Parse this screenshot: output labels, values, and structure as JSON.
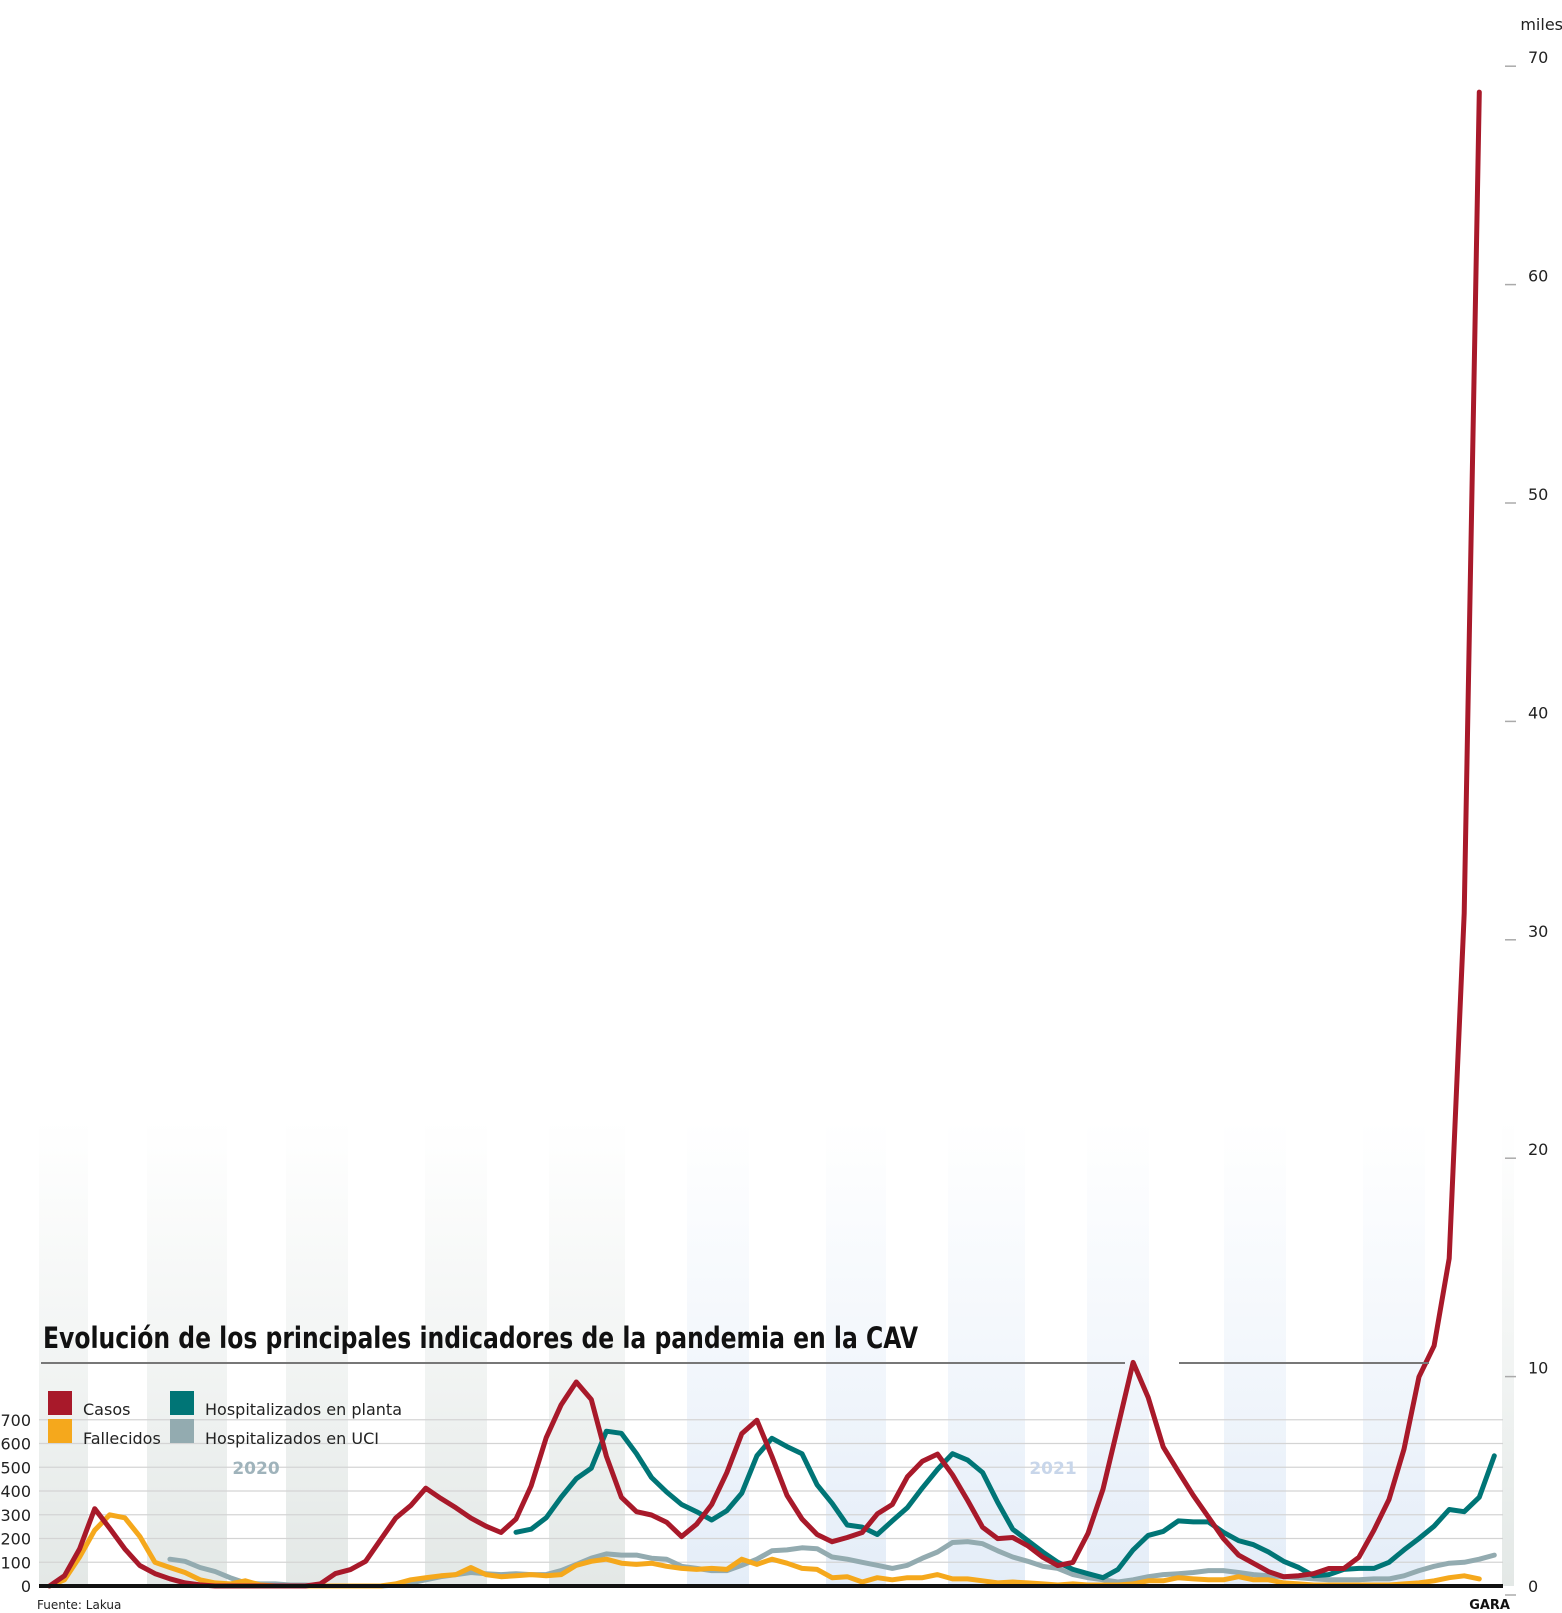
{
  "chart_data": {
    "type": "line",
    "title": "Evolución de los principales indicadores de la pandemia en la CAV",
    "source": "Fuente: Lakua",
    "brand": "GARA",
    "x_unit": "week index (March 2020 – January 2022)",
    "year_labels": [
      "2020",
      "2021"
    ],
    "left_axis": {
      "ticks": [
        "0",
        "100",
        "200",
        "300",
        "400",
        "500",
        "600",
        "700"
      ],
      "range": [
        0,
        700
      ],
      "applies_to": [
        "Hospitalizados en planta",
        "Hospitalizados en UCI",
        "Fallecidos"
      ]
    },
    "right_axis": {
      "unit_label": "miles",
      "ticks": [
        "0",
        "10",
        "20",
        "30",
        "40",
        "50",
        "60",
        "70"
      ],
      "range": [
        0,
        70
      ],
      "applies_to": [
        "Casos"
      ]
    },
    "grid": true,
    "legend": [
      {
        "name": "Casos",
        "color": "#a8192a"
      },
      {
        "name": "Fallecidos",
        "color": "#f5a81c"
      },
      {
        "name": "Hospitalizados en planta",
        "color": "#007576"
      },
      {
        "name": "Hospitalizados en UCI",
        "color": "#93abb0"
      }
    ],
    "legend_position": "top-left",
    "series": [
      {
        "name": "Casos",
        "axis": "right",
        "start": 0,
        "color": "#a8192a",
        "values": [
          0,
          0.47,
          1.7,
          3.54,
          2.64,
          1.7,
          0.94,
          0.57,
          0.33,
          0.14,
          0.05,
          0,
          0,
          0,
          0,
          0,
          0,
          0,
          0.1,
          0.57,
          0.75,
          1.13,
          2.12,
          3.11,
          3.68,
          4.48,
          4.01,
          3.58,
          3.11,
          2.74,
          2.45,
          3.07,
          4.58,
          6.79,
          8.3,
          9.34,
          8.54,
          5.94,
          4.06,
          3.4,
          3.25,
          2.92,
          2.26,
          2.83,
          3.73,
          5.19,
          6.98,
          7.59,
          5.94,
          4.15,
          3.07,
          2.36,
          2.03,
          2.22,
          2.45,
          3.3,
          3.73,
          5.0,
          5.71,
          6.04,
          5.09,
          3.92,
          2.69,
          2.17,
          2.22,
          1.84,
          1.32,
          0.94,
          1.08,
          2.41,
          4.43,
          7.31,
          10.24,
          8.63,
          6.37,
          5.24,
          4.15,
          3.16,
          2.17,
          1.42,
          1.04,
          0.66,
          0.42,
          0.47,
          0.57,
          0.8,
          0.8,
          1.32,
          2.55,
          3.96,
          6.27,
          9.58,
          11.0,
          15.0,
          30.8,
          68.4
        ]
      },
      {
        "name": "Fallecidos",
        "axis": "left",
        "start": 0,
        "color": "#f5a81c",
        "values": [
          0,
          26,
          122,
          235,
          300,
          287,
          209,
          100,
          78,
          57,
          26,
          13,
          9,
          22,
          4,
          0,
          0,
          0,
          0,
          0,
          0,
          0,
          0,
          9,
          26,
          35,
          43,
          48,
          78,
          48,
          39,
          43,
          48,
          43,
          48,
          87,
          104,
          113,
          96,
          91,
          96,
          83,
          74,
          70,
          74,
          70,
          113,
          91,
          113,
          96,
          74,
          70,
          35,
          39,
          17,
          35,
          26,
          35,
          35,
          48,
          30,
          30,
          22,
          13,
          17,
          13,
          9,
          4,
          9,
          4,
          4,
          4,
          9,
          22,
          22,
          35,
          30,
          26,
          26,
          39,
          26,
          26,
          13,
          9,
          4,
          4,
          4,
          4,
          4,
          4,
          9,
          13,
          22,
          35,
          43,
          30
        ]
      },
      {
        "name": "Hospitalizados en planta",
        "axis": "left",
        "start": 31,
        "color": "#007576",
        "values": [
          226,
          239,
          287,
          374,
          452,
          496,
          652,
          643,
          557,
          457,
          396,
          343,
          313,
          278,
          317,
          391,
          548,
          622,
          587,
          557,
          426,
          348,
          257,
          248,
          217,
          274,
          330,
          413,
          491,
          557,
          530,
          478,
          352,
          239,
          191,
          143,
          100,
          70,
          52,
          35,
          70,
          152,
          213,
          230,
          274,
          270,
          270,
          226,
          191,
          174,
          143,
          104,
          78,
          43,
          48,
          70,
          74,
          74,
          100,
          152,
          200,
          252,
          322,
          313,
          374,
          548
        ]
      },
      {
        "name": "Hospitalizados en UCI",
        "axis": "left",
        "start": 8,
        "color": "#93abb0",
        "values": [
          113,
          104,
          78,
          61,
          35,
          13,
          9,
          9,
          4,
          4,
          0,
          0,
          0,
          0,
          0,
          4,
          13,
          26,
          39,
          48,
          57,
          52,
          48,
          52,
          48,
          48,
          65,
          91,
          117,
          135,
          130,
          130,
          117,
          113,
          83,
          74,
          65,
          65,
          87,
          113,
          148,
          152,
          161,
          157,
          122,
          113,
          100,
          87,
          74,
          87,
          117,
          143,
          183,
          187,
          178,
          148,
          122,
          104,
          83,
          74,
          48,
          35,
          26,
          17,
          26,
          39,
          48,
          52,
          57,
          65,
          65,
          57,
          48,
          43,
          39,
          35,
          30,
          26,
          26,
          26,
          30,
          30,
          43,
          65,
          83,
          96,
          100,
          113,
          130
        ]
      }
    ]
  }
}
